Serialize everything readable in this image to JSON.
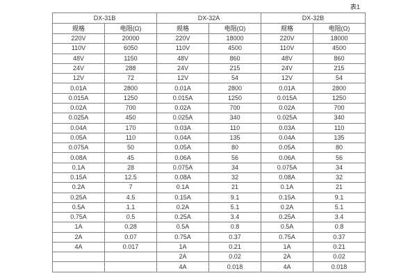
{
  "page": {
    "caption": "表1"
  },
  "table": {
    "groups": [
      {
        "name": "DX-31B",
        "col_headers": [
          "规格",
          "电阻(Ω)"
        ]
      },
      {
        "name": "DX-32A",
        "col_headers": [
          "规格",
          "电阻(Ω)"
        ]
      },
      {
        "name": "DX-32B",
        "col_headers": [
          "规格",
          "电阻(Ω)"
        ]
      }
    ],
    "rows": [
      [
        "220V",
        "20000",
        "220V",
        "18000",
        "220V",
        "18000"
      ],
      [
        "110V",
        "6050",
        "110V",
        "4500",
        "110V",
        "4500"
      ],
      [
        "48V",
        "1150",
        "48V",
        "860",
        "48V",
        "860"
      ],
      [
        "24V",
        "288",
        "24V",
        "215",
        "24V",
        "215"
      ],
      [
        "12V",
        "72",
        "12V",
        "54",
        "12V",
        "54"
      ],
      [
        "0.01A",
        "2800",
        "0.01A",
        "2800",
        "0.01A",
        "2800"
      ],
      [
        "0.015A",
        "1250",
        "0.015A",
        "1250",
        "0.015A",
        "1250"
      ],
      [
        "0.02A",
        "700",
        "0.02A",
        "700",
        "0.02A",
        "700"
      ],
      [
        "0.025A",
        "450",
        "0.025A",
        "340",
        "0.025A",
        "340"
      ],
      [
        "0.04A",
        "170",
        "0.03A",
        "110",
        "0.03A",
        "110"
      ],
      [
        "0.05A",
        "110",
        "0.04A",
        "135",
        "0.04A",
        "135"
      ],
      [
        "0.075A",
        "50",
        "0.05A",
        "80",
        "0.05A",
        "80"
      ],
      [
        "0.08A",
        "45",
        "0.06A",
        "56",
        "0.06A",
        "56"
      ],
      [
        "0.1A",
        "28",
        "0.075A",
        "34",
        "0.075A",
        "34"
      ],
      [
        "0.15A",
        "12.5",
        "0.08A",
        "32",
        "0.08A",
        "32"
      ],
      [
        "0.2A",
        "7",
        "0.1A",
        "21",
        "0.1A",
        "21"
      ],
      [
        "0.25A",
        "4.5",
        "0.15A",
        "9.1",
        "0.15A",
        "9.1"
      ],
      [
        "0.5A",
        "1.1",
        "0.2A",
        "5.1",
        "0.2A",
        "5.1"
      ],
      [
        "0.75A",
        "0.5",
        "0.25A",
        "3.4",
        "0.25A",
        "3.4"
      ],
      [
        "1A",
        "0.28",
        "0.5A",
        "0.8",
        "0.5A",
        "0.8"
      ],
      [
        "2A",
        "0.07",
        "0.75A",
        "0.37",
        "0.75A",
        "0.37"
      ],
      [
        "4A",
        "0.017",
        "1A",
        "0.21",
        "1A",
        "0.21"
      ],
      [
        "",
        "",
        "2A",
        "0.02",
        "2A",
        "0.02"
      ],
      [
        "",
        "",
        "4A",
        "0.018",
        "4A",
        "0.018"
      ]
    ],
    "colors": {
      "border": "#7f7f7f",
      "text": "#333333",
      "background": "#ffffff"
    }
  }
}
